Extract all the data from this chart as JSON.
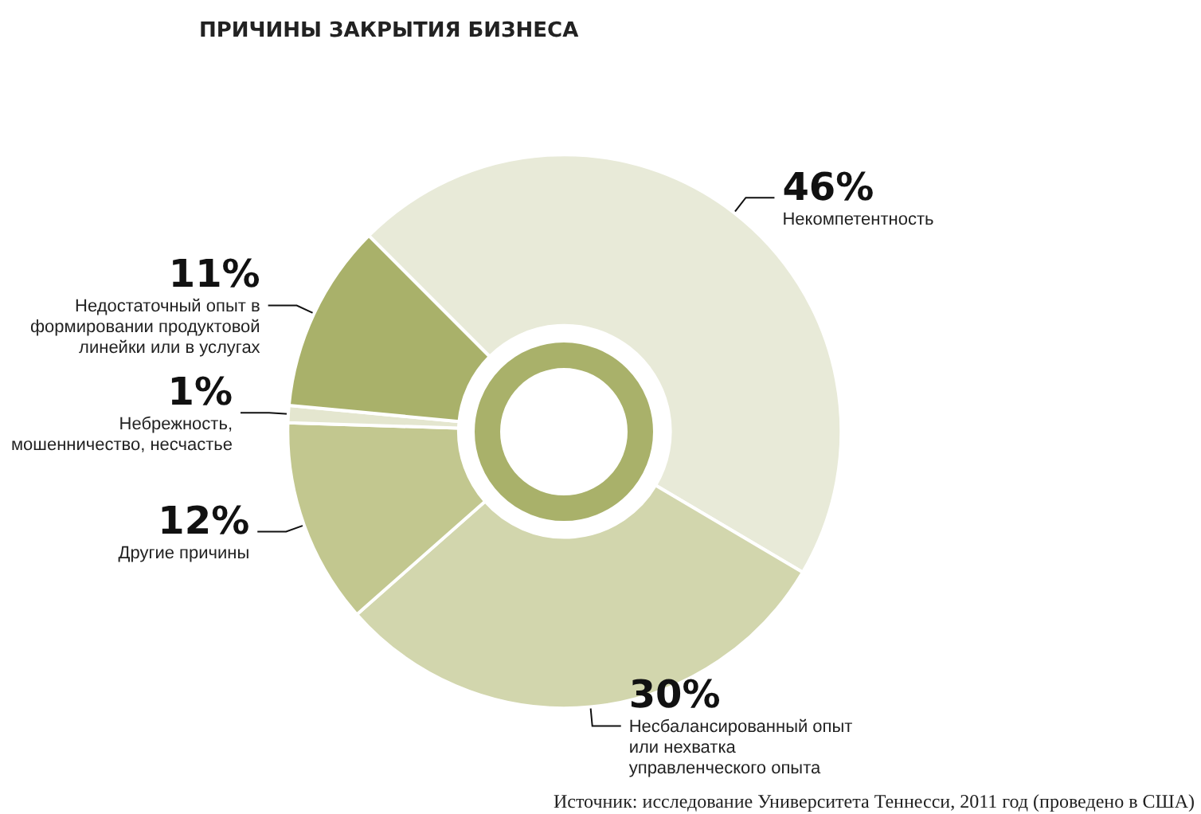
{
  "chart_data": {
    "type": "donut",
    "title": "ПРИЧИНЫ ЗАКРЫТИЯ БИЗНЕСА",
    "categories": [
      "Некомпетентность",
      "Несбалансированный опыт или нехватка управленческого опыта",
      "Другие причины",
      "Небрежность, мошенничество, несчастье",
      "Недостаточный опыт в формировании продуктовой линейки или в услугах"
    ],
    "values": [
      46,
      30,
      12,
      1,
      11
    ],
    "value_labels": [
      "46%",
      "30%",
      "12%",
      "1%",
      "11%"
    ],
    "colors": [
      "#e8ead8",
      "#d2d6ad",
      "#c2c78f",
      "#e4e6cf",
      "#a9b16a"
    ],
    "legend": false,
    "annotations": [
      "Источник: исследование Университета Теннесси, 2011 год (проведено в США)"
    ]
  }
}
